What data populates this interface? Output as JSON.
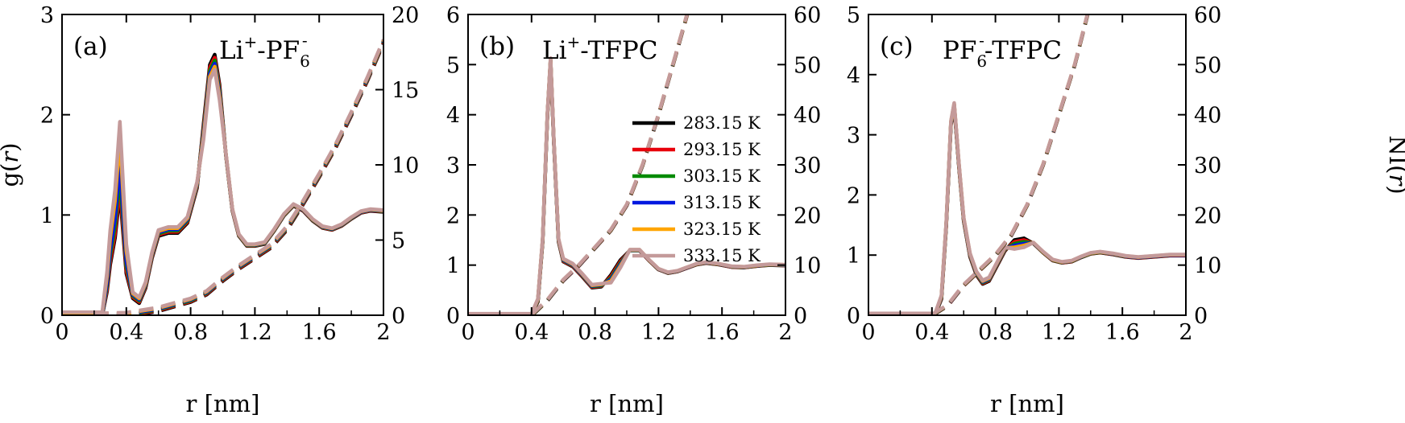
{
  "colors": {
    "283.15 K": "#000000",
    "293.15 K": "#e8000b",
    "303.15 K": "#008a00",
    "313.15 K": "#0018e0",
    "323.15 K": "#ffa500",
    "333.15 K": "#c49a9a"
  },
  "chart_data": [
    {
      "type": "line",
      "panel_tag": "(a)",
      "title_parts": {
        "a": "Li",
        "a_sup": "+",
        "mid": "-PF",
        "b_sub": "6",
        "b_sup": "-"
      },
      "xlabel": "r [nm]",
      "ylabel_left": "g(r)",
      "ylabel_right": "",
      "xlim": [
        0,
        2
      ],
      "ylim_left": [
        0,
        3
      ],
      "ylim_right": [
        0,
        20
      ],
      "x_ticks": [
        "0",
        "0.4",
        "0.8",
        "1.2",
        "1.6",
        "2"
      ],
      "y_ticks_left": [
        "0",
        "1",
        "2",
        "3"
      ],
      "y_ticks_right": [
        "0",
        "5",
        "10",
        "15",
        "20"
      ],
      "legend": null,
      "series": [
        {
          "name": "283.15 K",
          "first_peak": 1.25
        },
        {
          "name": "293.15 K",
          "first_peak": 1.3
        },
        {
          "name": "303.15 K",
          "first_peak": 1.4
        },
        {
          "name": "313.15 K",
          "first_peak": 1.5
        },
        {
          "name": "323.15 K",
          "first_peak": 1.75
        },
        {
          "name": "333.15 K",
          "first_peak": 1.9
        }
      ],
      "gr_points": [
        [
          0.0,
          0
        ],
        [
          0.25,
          0
        ],
        [
          0.28,
          0.3
        ],
        [
          0.3,
          0.6
        ],
        [
          0.33,
          0.9
        ],
        [
          0.36,
          1.4
        ],
        [
          0.4,
          0.5
        ],
        [
          0.44,
          0.2
        ],
        [
          0.48,
          0.15
        ],
        [
          0.52,
          0.3
        ],
        [
          0.56,
          0.6
        ],
        [
          0.6,
          0.82
        ],
        [
          0.66,
          0.85
        ],
        [
          0.72,
          0.85
        ],
        [
          0.78,
          0.95
        ],
        [
          0.84,
          1.3
        ],
        [
          0.88,
          1.9
        ],
        [
          0.92,
          2.5
        ],
        [
          0.95,
          2.6
        ],
        [
          0.98,
          2.3
        ],
        [
          1.02,
          1.6
        ],
        [
          1.06,
          1.05
        ],
        [
          1.1,
          0.8
        ],
        [
          1.15,
          0.7
        ],
        [
          1.2,
          0.7
        ],
        [
          1.26,
          0.72
        ],
        [
          1.32,
          0.85
        ],
        [
          1.38,
          1.0
        ],
        [
          1.44,
          1.1
        ],
        [
          1.5,
          1.05
        ],
        [
          1.56,
          0.95
        ],
        [
          1.62,
          0.88
        ],
        [
          1.68,
          0.86
        ],
        [
          1.74,
          0.9
        ],
        [
          1.8,
          0.97
        ],
        [
          1.86,
          1.03
        ],
        [
          1.92,
          1.05
        ],
        [
          2.0,
          1.04
        ]
      ],
      "ni_points": [
        [
          0.2,
          0
        ],
        [
          0.4,
          0.05
        ],
        [
          0.6,
          0.4
        ],
        [
          0.8,
          1.0
        ],
        [
          0.9,
          1.5
        ],
        [
          1.0,
          2.4
        ],
        [
          1.1,
          3.2
        ],
        [
          1.2,
          3.9
        ],
        [
          1.3,
          4.6
        ],
        [
          1.4,
          5.8
        ],
        [
          1.5,
          7.5
        ],
        [
          1.6,
          9.3
        ],
        [
          1.7,
          11.2
        ],
        [
          1.8,
          13.4
        ],
        [
          1.9,
          15.7
        ],
        [
          2.0,
          18.2
        ]
      ]
    },
    {
      "type": "line",
      "panel_tag": "(b)",
      "title_parts": {
        "a": "Li",
        "a_sup": "+",
        "mid": "-TFPC",
        "b_sub": "",
        "b_sup": ""
      },
      "xlabel": "r [nm]",
      "ylabel_left": "",
      "ylabel_right": "",
      "xlim": [
        0,
        2
      ],
      "ylim_left": [
        0,
        6
      ],
      "ylim_right": [
        0,
        60
      ],
      "x_ticks": [
        "0",
        "0.4",
        "0.8",
        "1.2",
        "1.6",
        "2"
      ],
      "y_ticks_left": [
        "0",
        "1",
        "2",
        "3",
        "4",
        "5",
        "6"
      ],
      "y_ticks_right": [
        "0",
        "10",
        "20",
        "30",
        "40",
        "50",
        "60"
      ],
      "legend": [
        "283.15 K",
        "293.15 K",
        "303.15 K",
        "313.15 K",
        "323.15 K",
        "333.15 K"
      ],
      "gr_points": [
        [
          0.0,
          0
        ],
        [
          0.4,
          0
        ],
        [
          0.44,
          0.3
        ],
        [
          0.47,
          1.5
        ],
        [
          0.5,
          4.0
        ],
        [
          0.52,
          5.1
        ],
        [
          0.54,
          3.5
        ],
        [
          0.57,
          1.5
        ],
        [
          0.6,
          1.1
        ],
        [
          0.66,
          1.0
        ],
        [
          0.72,
          0.8
        ],
        [
          0.78,
          0.58
        ],
        [
          0.84,
          0.6
        ],
        [
          0.9,
          0.8
        ],
        [
          0.96,
          1.1
        ],
        [
          1.02,
          1.3
        ],
        [
          1.08,
          1.3
        ],
        [
          1.14,
          1.1
        ],
        [
          1.2,
          0.92
        ],
        [
          1.26,
          0.85
        ],
        [
          1.32,
          0.88
        ],
        [
          1.38,
          0.95
        ],
        [
          1.44,
          1.02
        ],
        [
          1.5,
          1.05
        ],
        [
          1.58,
          1.02
        ],
        [
          1.66,
          0.97
        ],
        [
          1.74,
          0.96
        ],
        [
          1.82,
          0.99
        ],
        [
          1.9,
          1.01
        ],
        [
          2.0,
          1.0
        ]
      ],
      "ni_points": [
        [
          0.4,
          0
        ],
        [
          0.5,
          3
        ],
        [
          0.6,
          7
        ],
        [
          0.7,
          10
        ],
        [
          0.8,
          13.5
        ],
        [
          0.9,
          17
        ],
        [
          1.0,
          22
        ],
        [
          1.1,
          30
        ],
        [
          1.2,
          40
        ],
        [
          1.3,
          51
        ],
        [
          1.38,
          60
        ]
      ]
    },
    {
      "type": "line",
      "panel_tag": "(c)",
      "title_parts": {
        "a": "PF",
        "a_sub": "6",
        "a_sup": "-",
        "mid": "-TFPC",
        "b_sub": "",
        "b_sup": ""
      },
      "xlabel": "r [nm]",
      "ylabel_left": "",
      "ylabel_right": "NI(r)",
      "xlim": [
        0,
        2
      ],
      "ylim_left": [
        0,
        5
      ],
      "ylim_right": [
        0,
        60
      ],
      "x_ticks": [
        "0",
        "0.4",
        "0.8",
        "1.2",
        "1.6",
        "2"
      ],
      "y_ticks_left": [
        "0",
        "1",
        "2",
        "3",
        "4",
        "5"
      ],
      "y_ticks_right": [
        "0",
        "10",
        "20",
        "30",
        "40",
        "50",
        "60"
      ],
      "legend": null,
      "gr_points": [
        [
          0.0,
          0
        ],
        [
          0.42,
          0
        ],
        [
          0.46,
          0.3
        ],
        [
          0.49,
          1.5
        ],
        [
          0.52,
          3.2
        ],
        [
          0.54,
          3.5
        ],
        [
          0.57,
          2.5
        ],
        [
          0.6,
          1.6
        ],
        [
          0.64,
          1.0
        ],
        [
          0.68,
          0.7
        ],
        [
          0.72,
          0.55
        ],
        [
          0.76,
          0.6
        ],
        [
          0.8,
          0.8
        ],
        [
          0.86,
          1.1
        ],
        [
          0.92,
          1.25
        ],
        [
          0.98,
          1.28
        ],
        [
          1.04,
          1.2
        ],
        [
          1.1,
          1.05
        ],
        [
          1.16,
          0.92
        ],
        [
          1.22,
          0.88
        ],
        [
          1.28,
          0.9
        ],
        [
          1.34,
          0.97
        ],
        [
          1.4,
          1.03
        ],
        [
          1.46,
          1.05
        ],
        [
          1.54,
          1.02
        ],
        [
          1.62,
          0.98
        ],
        [
          1.7,
          0.96
        ],
        [
          1.8,
          0.98
        ],
        [
          1.9,
          1.0
        ],
        [
          2.0,
          1.0
        ]
      ],
      "ni_points": [
        [
          0.4,
          0
        ],
        [
          0.5,
          2
        ],
        [
          0.6,
          6
        ],
        [
          0.7,
          9
        ],
        [
          0.8,
          12
        ],
        [
          0.9,
          16
        ],
        [
          1.0,
          22
        ],
        [
          1.1,
          30
        ],
        [
          1.2,
          40
        ],
        [
          1.3,
          50
        ],
        [
          1.38,
          60
        ]
      ]
    }
  ]
}
